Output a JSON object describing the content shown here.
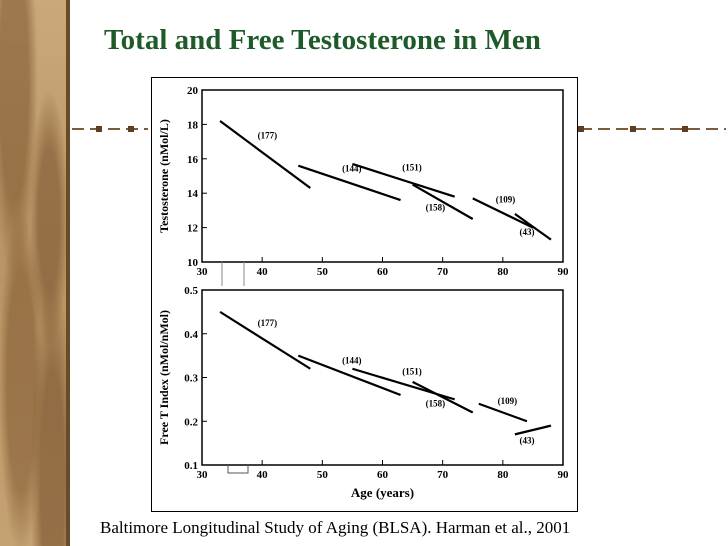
{
  "slide": {
    "title": "Total and Free Testosterone in Men",
    "caption": "Baltimore Longitudinal Study of Aging (BLSA). Harman et al., 2001",
    "colors": {
      "title": "#1f5a2a",
      "sidebar": "#b99464",
      "decoration": "#7a5c3c"
    }
  },
  "chart_data": [
    {
      "type": "line",
      "ylabel": "Testosterone (nMol/L)",
      "xlabel": "",
      "xlim": [
        30,
        90
      ],
      "ylim": [
        10,
        20
      ],
      "xticks": [
        30,
        40,
        50,
        60,
        70,
        80,
        90
      ],
      "yticks": [
        10,
        12,
        14,
        16,
        18,
        20
      ],
      "grid": false,
      "series": [
        {
          "name": "(177)",
          "x": [
            33,
            48
          ],
          "y": [
            18.2,
            14.3
          ]
        },
        {
          "name": "(144)",
          "x": [
            46,
            63
          ],
          "y": [
            15.6,
            13.6
          ]
        },
        {
          "name": "(151)",
          "x": [
            55,
            72
          ],
          "y": [
            15.7,
            13.8
          ]
        },
        {
          "name": "(158)",
          "x": [
            65,
            75
          ],
          "y": [
            14.5,
            12.5
          ]
        },
        {
          "name": "(109)",
          "x": [
            75,
            85
          ],
          "y": [
            13.7,
            12.0
          ]
        },
        {
          "name": "(43)",
          "x": [
            82,
            88
          ],
          "y": [
            12.8,
            11.3
          ]
        }
      ]
    },
    {
      "type": "line",
      "ylabel": "Free T Index (nMol/nMol)",
      "xlabel": "Age (years)",
      "xlim": [
        30,
        90
      ],
      "ylim": [
        0.1,
        0.5
      ],
      "xticks": [
        30,
        40,
        50,
        60,
        70,
        80,
        90
      ],
      "yticks": [
        0.1,
        0.2,
        0.3,
        0.4,
        0.5
      ],
      "grid": false,
      "series": [
        {
          "name": "(177)",
          "x": [
            33,
            48
          ],
          "y": [
            0.45,
            0.32
          ]
        },
        {
          "name": "(144)",
          "x": [
            46,
            63
          ],
          "y": [
            0.35,
            0.26
          ]
        },
        {
          "name": "(151)",
          "x": [
            55,
            72
          ],
          "y": [
            0.32,
            0.25
          ]
        },
        {
          "name": "(158)",
          "x": [
            65,
            75
          ],
          "y": [
            0.29,
            0.22
          ]
        },
        {
          "name": "(109)",
          "x": [
            76,
            84
          ],
          "y": [
            0.24,
            0.2
          ]
        },
        {
          "name": "(43)",
          "x": [
            82,
            88
          ],
          "y": [
            0.17,
            0.19
          ]
        }
      ]
    }
  ]
}
